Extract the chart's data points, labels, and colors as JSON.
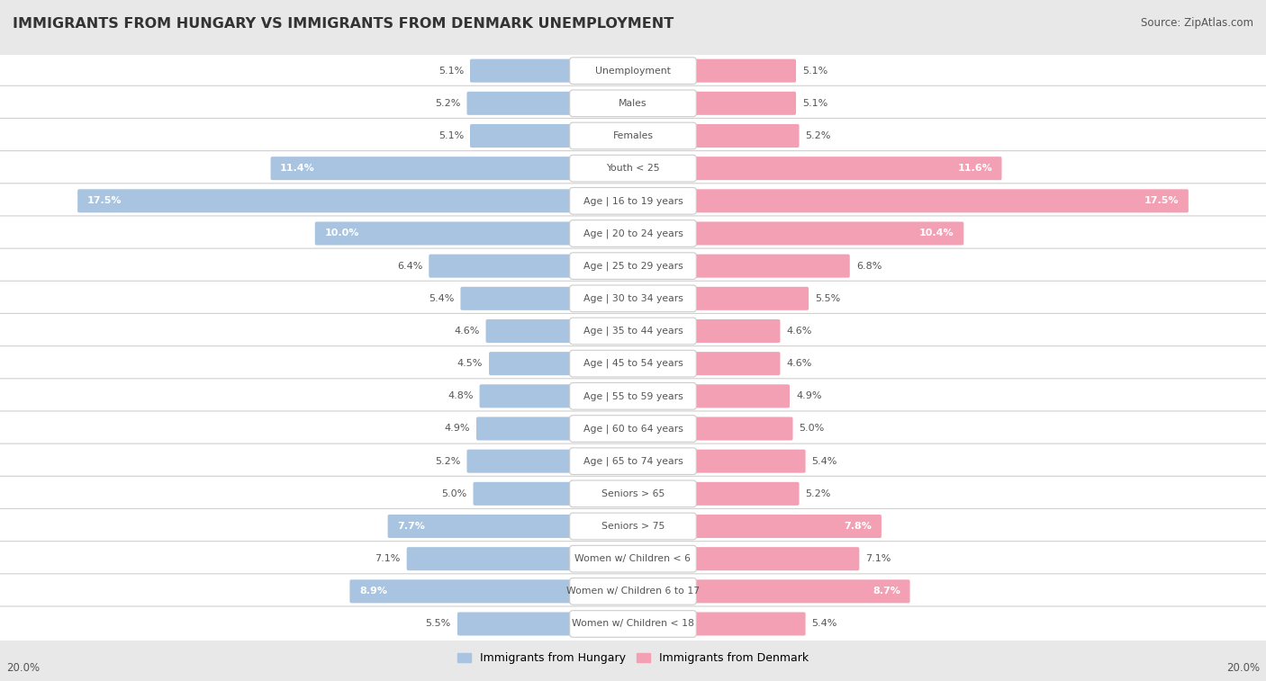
{
  "title": "IMMIGRANTS FROM HUNGARY VS IMMIGRANTS FROM DENMARK UNEMPLOYMENT",
  "source": "Source: ZipAtlas.com",
  "categories": [
    "Unemployment",
    "Males",
    "Females",
    "Youth < 25",
    "Age | 16 to 19 years",
    "Age | 20 to 24 years",
    "Age | 25 to 29 years",
    "Age | 30 to 34 years",
    "Age | 35 to 44 years",
    "Age | 45 to 54 years",
    "Age | 55 to 59 years",
    "Age | 60 to 64 years",
    "Age | 65 to 74 years",
    "Seniors > 65",
    "Seniors > 75",
    "Women w/ Children < 6",
    "Women w/ Children 6 to 17",
    "Women w/ Children < 18"
  ],
  "hungary_values": [
    5.1,
    5.2,
    5.1,
    11.4,
    17.5,
    10.0,
    6.4,
    5.4,
    4.6,
    4.5,
    4.8,
    4.9,
    5.2,
    5.0,
    7.7,
    7.1,
    8.9,
    5.5
  ],
  "denmark_values": [
    5.1,
    5.1,
    5.2,
    11.6,
    17.5,
    10.4,
    6.8,
    5.5,
    4.6,
    4.6,
    4.9,
    5.0,
    5.4,
    5.2,
    7.8,
    7.1,
    8.7,
    5.4
  ],
  "hungary_color": "#a8c4e0",
  "denmark_color": "#f4a0b4",
  "hungary_label": "Immigrants from Hungary",
  "denmark_label": "Immigrants from Denmark",
  "axis_max": 20.0,
  "axis_label": "20.0%",
  "background_color": "#e8e8e8",
  "row_color_light": "#f5f5f5",
  "row_color_white": "#ffffff",
  "label_color": "#555555",
  "title_color": "#333333",
  "value_inside_threshold": 7.5
}
